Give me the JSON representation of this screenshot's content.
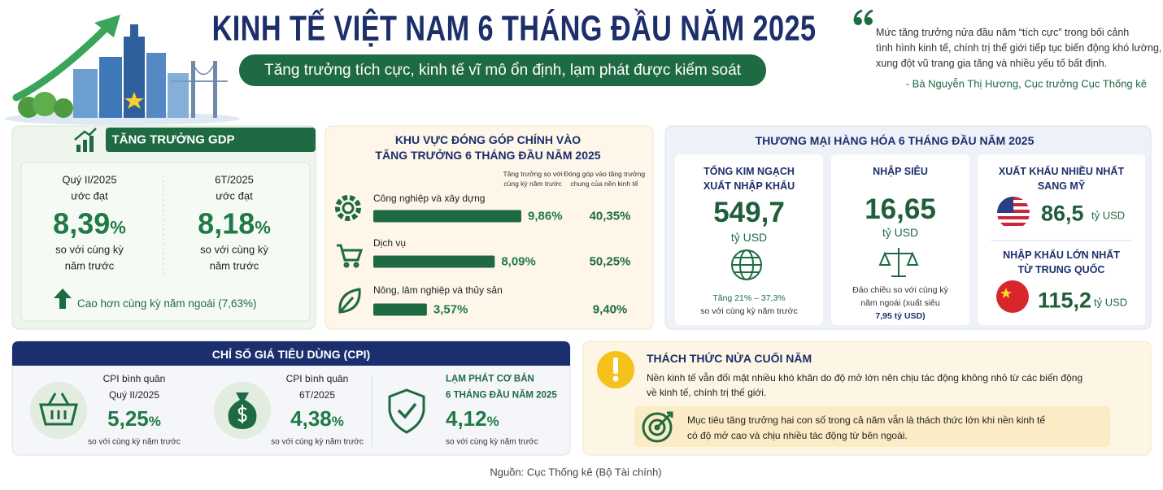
{
  "header": {
    "title": "KINH TẾ VIỆT NAM 6 THÁNG ĐẦU NĂM 2025",
    "subtitle": "Tăng trưởng tích cực, kinh tế vĩ mô ổn định, lạm phát được kiểm soát"
  },
  "quote": {
    "lines": [
      "Mức tăng trưởng nửa đầu năm “tích cực” trong bối cảnh",
      "tình hình kinh tế, chính trị thế giới tiếp tục biến động khó lường,",
      "xung đột vũ trang gia tăng và nhiều yếu tố bất định."
    ],
    "author": "- Bà Nguyễn Thị Hương, Cục trưởng Cục Thống kê"
  },
  "gdp": {
    "title": "TĂNG TRƯỞNG GDP",
    "items": [
      {
        "period": "Quý II/2025",
        "note": "ước đạt",
        "value": "8,39",
        "unit": "%",
        "compare": [
          "so với cùng kỳ",
          "năm trước"
        ]
      },
      {
        "period": "6T/2025",
        "note": "ước đạt",
        "value": "8,18",
        "unit": "%",
        "compare": [
          "so với cùng kỳ",
          "năm trước"
        ]
      }
    ],
    "footnote": "Cao hơn cùng kỳ năm ngoái (7,63%)"
  },
  "sectors": {
    "title": [
      "KHU VỰC ĐÓNG GÓP CHÍNH VÀO",
      "TĂNG TRƯỞNG 6 THÁNG ĐẦU NĂM 2025"
    ],
    "headers": [
      [
        "Tăng trưởng so với",
        "cùng kỳ năm trước"
      ],
      [
        "Đóng góp vào tăng trưởng",
        "chung của nền kinh tế"
      ]
    ],
    "rows": [
      {
        "name": "Công nghiệp và xây dựng",
        "growth": 9.86,
        "growth_label": "9,86%",
        "share_label": "40,35%"
      },
      {
        "name": "Dịch vụ",
        "growth": 8.09,
        "growth_label": "8,09%",
        "share_label": "50,25%"
      },
      {
        "name": "Nông, lâm nghiệp và thủy sản",
        "growth": 3.57,
        "growth_label": "3,57%",
        "share_label": "9,40%"
      }
    ]
  },
  "trade": {
    "title": "THƯƠNG MẠI HÀNG HÓA 6 THÁNG ĐẦU NĂM 2025",
    "total": {
      "title": [
        "TỔNG KIM NGẠCH",
        "XUẤT NHẬP KHẨU"
      ],
      "value": "549,7",
      "unit": "tỷ USD",
      "note": [
        "Tăng 21% – 37,3%",
        "so với cùng kỳ năm trước"
      ]
    },
    "surplus": {
      "title": [
        "NHẬP SIÊU"
      ],
      "value": "16,65",
      "unit": "tỷ USD",
      "note": [
        "Đảo chiều so với cùng kỳ",
        "năm ngoái (xuất siêu",
        "7,95 tỷ USD)"
      ]
    },
    "export": {
      "title": [
        "XUẤT KHẨU NHIỀU NHẤT",
        "SANG MỸ"
      ],
      "value": "86,5",
      "unit": "tỷ USD"
    },
    "import": {
      "title": [
        "NHẬP KHẨU LỚN NHẤT",
        "TỪ TRUNG QUỐC"
      ],
      "value": "115,2",
      "unit": "tỷ USD"
    }
  },
  "cpi": {
    "title": "CHỈ SỐ GIÁ TIÊU DÙNG (CPI)",
    "items": [
      {
        "label": [
          "CPI bình quân",
          "Quý II/2025"
        ],
        "value": "5,25",
        "unit": "%",
        "note": "so với cùng kỳ năm trước"
      },
      {
        "label": [
          "CPI bình quân",
          "6T/2025"
        ],
        "value": "4,38",
        "unit": "%",
        "note": "so với cùng kỳ năm trước"
      },
      {
        "label": [
          "LẠM PHÁT CƠ BẢN",
          "6 THÁNG ĐẦU NĂM 2025"
        ],
        "value": "4,12",
        "unit": "%",
        "note": "so với cùng kỳ năm trước"
      }
    ]
  },
  "challenge": {
    "title": "THÁCH THỨC NỬA CUỐI NĂM",
    "text": [
      "Nền kinh tế vẫn đối mặt nhiều khó khăn do độ mở lớn nên chịu tác động không nhỏ từ các biến động",
      "về kinh tế, chính trị thế giới."
    ],
    "target": [
      "Mục tiêu tăng trưởng hai con số trong cả năm vẫn là thách thức lớn khi nền kinh tế",
      "có độ mở cao và chịu nhiều tác động từ bên ngoài."
    ]
  },
  "source": "Nguồn: Cục Thống kê (Bộ Tài chính)"
}
